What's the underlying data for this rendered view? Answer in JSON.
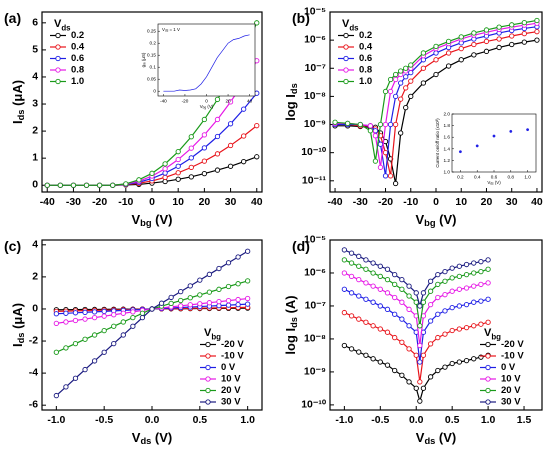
{
  "chart_data": [
    {
      "type": "line",
      "panel_label": "(a)",
      "xlabel": [
        "V",
        "bg",
        " (V)"
      ],
      "ylabel": [
        "I",
        "ds",
        " (μA)"
      ],
      "legend_title": [
        "V",
        "ds"
      ],
      "legend_position": "upper left",
      "marker": "circle",
      "x": [
        -40,
        -35,
        -30,
        -25,
        -20,
        -15,
        -10,
        -5,
        0,
        5,
        10,
        15,
        20,
        25,
        30,
        35,
        40
      ],
      "xlim": [
        -42,
        42
      ],
      "xticks": [
        -40,
        -30,
        -20,
        -10,
        0,
        10,
        20,
        30,
        40
      ],
      "ylim": [
        -0.25,
        6.4
      ],
      "yticks": [
        0,
        1,
        2,
        3,
        4,
        5,
        6
      ],
      "series": [
        {
          "name": "0.2",
          "color": "#000000",
          "values": [
            0,
            0,
            0,
            0,
            0,
            0,
            0.01,
            0.03,
            0.08,
            0.14,
            0.22,
            0.31,
            0.43,
            0.56,
            0.7,
            0.87,
            1.05
          ]
        },
        {
          "name": "0.4",
          "color": "#e8141b",
          "values": [
            0,
            0,
            0,
            0,
            0,
            0,
            0.02,
            0.07,
            0.16,
            0.29,
            0.46,
            0.66,
            0.89,
            1.16,
            1.47,
            1.82,
            2.2
          ]
        },
        {
          "name": "0.6",
          "color": "#1f1fe6",
          "values": [
            0,
            0,
            0,
            0,
            0,
            0,
            0.03,
            0.11,
            0.25,
            0.45,
            0.7,
            1.01,
            1.38,
            1.8,
            2.27,
            2.81,
            3.4
          ]
        },
        {
          "name": "0.8",
          "color": "#e619e6",
          "values": [
            0,
            0,
            0,
            0,
            0,
            0,
            0.04,
            0.15,
            0.34,
            0.61,
            0.95,
            1.37,
            1.86,
            2.43,
            3.08,
            3.8,
            4.6
          ]
        },
        {
          "name": "1.0",
          "color": "#1a9a1a",
          "values": [
            0,
            0,
            0,
            0,
            0,
            0,
            0.05,
            0.2,
            0.44,
            0.79,
            1.24,
            1.79,
            2.43,
            3.17,
            4.01,
            4.96,
            6.0
          ]
        }
      ]
    },
    {
      "type": "line",
      "panel_label": "(b)",
      "xlabel": [
        "V",
        "bg",
        " (V)"
      ],
      "ylabel": [
        "log I",
        "ds"
      ],
      "legend_title": [
        "V",
        "ds"
      ],
      "legend_position": "upper left",
      "marker": "circle",
      "yscale": "log",
      "x": [
        -40,
        -35,
        -30,
        -26,
        -24,
        -22,
        -20,
        -18,
        -16,
        -14,
        -12,
        -10,
        -5,
        0,
        5,
        10,
        15,
        20,
        25,
        30,
        35,
        40
      ],
      "xlim": [
        -42,
        42
      ],
      "xticks": [
        -40,
        -30,
        -20,
        -10,
        0,
        10,
        20,
        30,
        40
      ],
      "ylim": [
        4e-12,
        1e-05
      ],
      "yticks": [
        {
          "value": 1e-11,
          "label": "10⁻¹¹"
        },
        {
          "value": 1e-10,
          "label": "10⁻¹⁰"
        },
        {
          "value": 1e-09,
          "label": "10⁻⁹"
        },
        {
          "value": 1e-08,
          "label": "10⁻⁸"
        },
        {
          "value": 1e-07,
          "label": "10⁻⁷"
        },
        {
          "value": 1e-06,
          "label": "10⁻⁶"
        },
        {
          "value": 1e-05,
          "label": "10⁻⁵"
        }
      ],
      "series": [
        {
          "name": "0.2",
          "color": "#000000",
          "values": [
            9e-10,
            9e-10,
            8.5e-10,
            8e-10,
            8e-10,
            5e-10,
            2.5e-10,
            6e-11,
            8e-12,
            5e-10,
            4e-09,
            1e-08,
            3e-08,
            6e-08,
            1.2e-07,
            2e-07,
            3e-07,
            4e-07,
            5.5e-07,
            7e-07,
            8.5e-07,
            1e-06
          ]
        },
        {
          "name": "0.4",
          "color": "#e8141b",
          "values": [
            1e-09,
            1e-09,
            9e-10,
            9e-10,
            7e-10,
            4e-10,
            1e-10,
            1.5e-11,
            1e-09,
            8e-09,
            2e-08,
            3.5e-08,
            1e-07,
            2e-07,
            3.5e-07,
            5e-07,
            7e-07,
            9e-07,
            1.1e-06,
            1.4e-06,
            1.7e-06,
            2e-06
          ]
        },
        {
          "name": "0.6",
          "color": "#1f1fe6",
          "values": [
            1e-09,
            1e-09,
            1e-09,
            9e-10,
            6e-10,
            2e-10,
            1.5e-11,
            1e-09,
            1e-08,
            3e-08,
            5e-08,
            7e-08,
            2e-07,
            3.5e-07,
            5.5e-07,
            8e-07,
            1.1e-06,
            1.4e-06,
            1.8e-06,
            2.2e-06,
            2.6e-06,
            3e-06
          ]
        },
        {
          "name": "0.8",
          "color": "#e619e6",
          "values": [
            1.1e-09,
            1.1e-09,
            1e-09,
            9e-10,
            4e-10,
            3e-11,
            1e-09,
            1.5e-08,
            4e-08,
            6e-08,
            8e-08,
            1e-07,
            2.8e-07,
            5e-07,
            7.5e-07,
            1.1e-06,
            1.5e-06,
            1.9e-06,
            2.4e-06,
            2.9e-06,
            3.4e-06,
            4e-06
          ]
        },
        {
          "name": "1.0",
          "color": "#1a9a1a",
          "values": [
            1.2e-09,
            1.1e-09,
            1e-09,
            6e-10,
            5e-11,
            1e-09,
            1.5e-08,
            4e-08,
            6e-08,
            8e-08,
            1e-07,
            1.3e-07,
            3.5e-07,
            6e-07,
            9e-07,
            1.3e-06,
            1.8e-06,
            2.3e-06,
            2.9e-06,
            3.5e-06,
            4.2e-06,
            5e-06
          ]
        }
      ]
    },
    {
      "type": "line",
      "panel_label": "(c)",
      "xlabel": [
        "V",
        "ds",
        " (V)"
      ],
      "ylabel": [
        "I",
        "ds",
        " (μA)"
      ],
      "legend_title": [
        "V",
        "bg"
      ],
      "legend_position": "lower right",
      "marker": "circle",
      "x": [
        -1,
        -0.9,
        -0.8,
        -0.7,
        -0.6,
        -0.5,
        -0.4,
        -0.3,
        -0.2,
        -0.1,
        0,
        0.1,
        0.2,
        0.3,
        0.4,
        0.5,
        0.6,
        0.7,
        0.8,
        0.9,
        1
      ],
      "xlim": [
        -1.15,
        1.15
      ],
      "xticks": [
        {
          "value": -1,
          "label": "-1.0"
        },
        -0.5,
        {
          "value": 0,
          "label": "0.0"
        },
        0.5,
        {
          "value": 1,
          "label": "1.0"
        }
      ],
      "ylim": [
        -6.3,
        4.3
      ],
      "yticks": [
        -6,
        -4,
        -2,
        0,
        2,
        4
      ],
      "series": [
        {
          "name": "-20 V",
          "color": "#000000",
          "values": [
            -0.05,
            -0.045,
            -0.04,
            -0.035,
            -0.03,
            -0.025,
            -0.02,
            -0.015,
            -0.01,
            -0.005,
            0,
            0.005,
            0.01,
            0.015,
            0.02,
            0.025,
            0.03,
            0.035,
            0.04,
            0.045,
            0.05
          ]
        },
        {
          "name": "-10 V",
          "color": "#e8141b",
          "values": [
            -0.15,
            -0.135,
            -0.12,
            -0.105,
            -0.09,
            -0.075,
            -0.06,
            -0.045,
            -0.03,
            -0.015,
            0,
            0.01,
            0.02,
            0.03,
            0.04,
            0.05,
            0.06,
            0.07,
            0.08,
            0.09,
            0.1
          ]
        },
        {
          "name": "0 V",
          "color": "#1f1fe6",
          "values": [
            -0.3,
            -0.27,
            -0.24,
            -0.21,
            -0.18,
            -0.15,
            -0.12,
            -0.09,
            -0.06,
            -0.03,
            0,
            0.03,
            0.06,
            0.09,
            0.12,
            0.15,
            0.18,
            0.21,
            0.24,
            0.27,
            0.3
          ]
        },
        {
          "name": "10 V",
          "color": "#e619e6",
          "values": [
            -0.9,
            -0.81,
            -0.72,
            -0.63,
            -0.54,
            -0.45,
            -0.36,
            -0.27,
            -0.18,
            -0.09,
            0,
            0.065,
            0.13,
            0.195,
            0.26,
            0.325,
            0.39,
            0.455,
            0.52,
            0.585,
            0.65
          ]
        },
        {
          "name": "20 V",
          "color": "#1a9a1a",
          "values": [
            -2.7,
            -2.43,
            -2.16,
            -1.89,
            -1.62,
            -1.35,
            -1.08,
            -0.81,
            -0.54,
            -0.27,
            0,
            0.175,
            0.35,
            0.525,
            0.7,
            0.875,
            1.05,
            1.225,
            1.4,
            1.575,
            1.75
          ]
        },
        {
          "name": "30 V",
          "color": "#1b1b80",
          "values": [
            -5.4,
            -4.86,
            -4.32,
            -3.78,
            -3.24,
            -2.7,
            -2.16,
            -1.62,
            -1.08,
            -0.54,
            0,
            0.36,
            0.72,
            1.08,
            1.44,
            1.8,
            2.16,
            2.52,
            2.88,
            3.24,
            3.6
          ]
        }
      ]
    },
    {
      "type": "line",
      "panel_label": "(d)",
      "xlabel": [
        "V",
        "ds",
        " (V)"
      ],
      "ylabel": [
        "log I",
        "ds",
        " (A)"
      ],
      "legend_title": [
        "V",
        "bg"
      ],
      "legend_position": "lower right",
      "marker": "circle",
      "yscale": "log",
      "x": [
        -1,
        -0.9,
        -0.8,
        -0.7,
        -0.6,
        -0.5,
        -0.4,
        -0.3,
        -0.2,
        -0.1,
        0,
        0.05,
        0.1,
        0.2,
        0.3,
        0.4,
        0.5,
        0.6,
        0.7,
        0.8,
        0.9,
        1
      ],
      "xlim": [
        -1.2,
        1.75
      ],
      "xticks": [
        {
          "value": -1,
          "label": "-1.0"
        },
        -0.5,
        {
          "value": 0,
          "label": "0.0"
        },
        0.5,
        {
          "value": 1,
          "label": "1.0"
        },
        1.5
      ],
      "ylim": [
        7e-11,
        1e-05
      ],
      "yticks": [
        {
          "value": 1e-10,
          "label": "10⁻¹⁰"
        },
        {
          "value": 1e-09,
          "label": "10⁻⁹"
        },
        {
          "value": 1e-08,
          "label": "10⁻⁸"
        },
        {
          "value": 1e-07,
          "label": "10⁻⁷"
        },
        {
          "value": 1e-06,
          "label": "10⁻⁶"
        },
        {
          "value": 1e-05,
          "label": "10⁻⁵"
        }
      ],
      "series": [
        {
          "name": "-20 V",
          "color": "#000000",
          "values": [
            6.3e-09,
            5e-09,
            4e-09,
            3.2e-09,
            2.5e-09,
            2e-09,
            1.6e-09,
            1.1e-09,
            7.9e-10,
            5e-10,
            3.2e-10,
            1.3e-10,
            3.2e-10,
            7.1e-10,
            1.1e-09,
            1.4e-09,
            1.8e-09,
            2e-09,
            2.2e-09,
            2.5e-09,
            2.8e-09,
            3.2e-09
          ]
        },
        {
          "name": "-10 V",
          "color": "#e8141b",
          "values": [
            6.3e-08,
            5e-08,
            4e-08,
            3.2e-08,
            2.5e-08,
            2e-08,
            1.6e-08,
            1.1e-08,
            7.9e-09,
            5e-09,
            3.2e-09,
            5e-10,
            3.2e-09,
            7.1e-09,
            1.1e-08,
            1.4e-08,
            1.8e-08,
            2e-08,
            2.2e-08,
            2.5e-08,
            2.8e-08,
            3.2e-08
          ]
        },
        {
          "name": "0 V",
          "color": "#1f1fe6",
          "values": [
            3.2e-07,
            2.5e-07,
            2e-07,
            1.6e-07,
            1.3e-07,
            1e-07,
            7.9e-08,
            5.6e-08,
            4e-08,
            2.5e-08,
            1.6e-08,
            2e-09,
            1.6e-08,
            3.5e-08,
            5.6e-08,
            7.1e-08,
            8.9e-08,
            1e-07,
            1.1e-07,
            1.3e-07,
            1.4e-07,
            1.6e-07
          ]
        },
        {
          "name": "10 V",
          "color": "#e619e6",
          "values": [
            1e-06,
            7.9e-07,
            6.3e-07,
            5e-07,
            4e-07,
            3.2e-07,
            2.5e-07,
            1.8e-07,
            1.3e-07,
            7.9e-08,
            5e-08,
            6.3e-09,
            5e-08,
            1.1e-07,
            1.8e-07,
            2.2e-07,
            2.8e-07,
            3.2e-07,
            3.5e-07,
            4e-07,
            4.5e-07,
            5e-07
          ]
        },
        {
          "name": "20 V",
          "color": "#1a9a1a",
          "values": [
            2.5e-06,
            2e-06,
            1.6e-06,
            1.3e-06,
            1e-06,
            7.9e-07,
            6.3e-07,
            4.5e-07,
            3.2e-07,
            2e-07,
            1.3e-07,
            2.5e-08,
            1.3e-07,
            2.8e-07,
            4.5e-07,
            5.6e-07,
            7.1e-07,
            7.9e-07,
            8.9e-07,
            1e-06,
            1.1e-06,
            1.3e-06
          ]
        },
        {
          "name": "30 V",
          "color": "#1b1b80",
          "values": [
            5e-06,
            4e-06,
            3.2e-06,
            2.5e-06,
            2e-06,
            1.6e-06,
            1.3e-06,
            8.9e-07,
            6.3e-07,
            4e-07,
            2.5e-07,
            1e-07,
            2.5e-07,
            5.6e-07,
            8.9e-07,
            1.1e-06,
            1.4e-06,
            1.6e-06,
            1.8e-06,
            2e-06,
            2.2e-06,
            2.5e-06
          ]
        }
      ]
    },
    {
      "type": "line",
      "title": [
        "V",
        "ds",
        " = 1 V"
      ],
      "xlabel": [
        "V",
        "bg",
        " (V)"
      ],
      "ylabel": [
        "g",
        "m",
        " (μS)"
      ],
      "x": [
        -40,
        -35,
        -30,
        -25,
        -20,
        -15,
        -10,
        -5,
        0,
        5,
        10,
        15,
        20,
        25,
        30,
        35,
        40
      ],
      "xlim": [
        -45,
        45
      ],
      "xticks": [
        -40,
        -20,
        0,
        20,
        40
      ],
      "ylim": [
        -0.02,
        0.28
      ],
      "yticks": [
        0,
        0.05,
        0.1,
        0.15,
        0.2,
        0.25
      ],
      "series": [
        {
          "color": "#1f1fe6",
          "values": [
            0,
            0,
            0,
            0.005,
            0.003,
            0.005,
            0.01,
            0.03,
            0.06,
            0.1,
            0.14,
            0.17,
            0.2,
            0.215,
            0.22,
            0.23,
            0.235
          ]
        }
      ]
    },
    {
      "type": "scatter",
      "xlabel": [
        "V",
        "ds",
        " (V)"
      ],
      "ylabel": [
        "Current on/off ratio (x10³)"
      ],
      "x": [
        0.2,
        0.4,
        0.6,
        0.8,
        1.0
      ],
      "xlim": [
        0.1,
        1.1
      ],
      "xticks": [
        0.2,
        0.4,
        0.6,
        0.8,
        {
          "value": 1,
          "label": "1.0"
        }
      ],
      "ylim": [
        1.0,
        2.0
      ],
      "yticks": [
        {
          "value": 1,
          "label": "1.0"
        },
        1.2,
        1.4,
        1.6,
        1.8,
        {
          "value": 2,
          "label": "2.0"
        }
      ],
      "series": [
        {
          "color": "#1f1fe6",
          "values": [
            1.35,
            1.45,
            1.62,
            1.7,
            1.73
          ]
        }
      ]
    }
  ]
}
